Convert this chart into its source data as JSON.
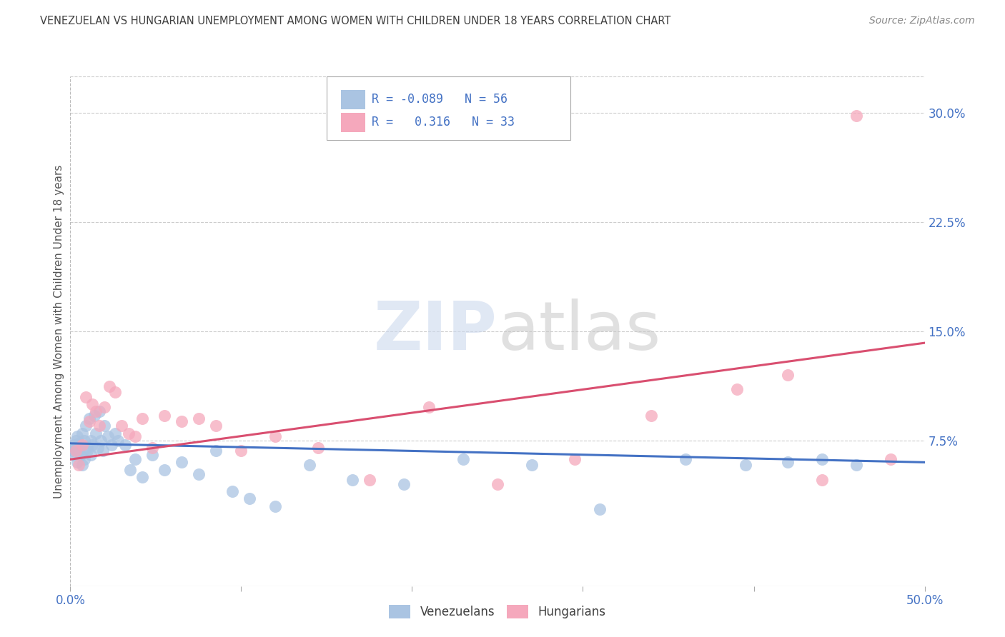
{
  "title": "VENEZUELAN VS HUNGARIAN UNEMPLOYMENT AMONG WOMEN WITH CHILDREN UNDER 18 YEARS CORRELATION CHART",
  "source": "Source: ZipAtlas.com",
  "ylabel": "Unemployment Among Women with Children Under 18 years",
  "xlim": [
    0.0,
    0.5
  ],
  "ylim": [
    -0.025,
    0.325
  ],
  "xticks": [
    0.0,
    0.1,
    0.2,
    0.3,
    0.4,
    0.5
  ],
  "xtick_labels": [
    "0.0%",
    "",
    "",
    "",
    "",
    "50.0%"
  ],
  "yticks_right": [
    0.075,
    0.15,
    0.225,
    0.3
  ],
  "ytick_labels_right": [
    "7.5%",
    "15.0%",
    "22.5%",
    "30.0%"
  ],
  "legend_venezuelan": "Venezuelans",
  "legend_hungarian": "Hungarians",
  "r_venezuelan": "-0.089",
  "n_venezuelan": "56",
  "r_hungarian": "0.316",
  "n_hungarian": "33",
  "color_venezuelan": "#aac4e2",
  "color_hungarian": "#f5a8bc",
  "color_trendline_venezuelan": "#4472c4",
  "color_trendline_hungarian": "#d94f70",
  "color_title": "#404040",
  "color_axis_labels": "#4472c4",
  "trendline_ven_x0": 0.0,
  "trendline_ven_y0": 0.073,
  "trendline_ven_x1": 0.5,
  "trendline_ven_y1": 0.06,
  "trendline_hun_x0": 0.0,
  "trendline_hun_y0": 0.062,
  "trendline_hun_x1": 0.5,
  "trendline_hun_y1": 0.142,
  "venezuelan_x": [
    0.001,
    0.002,
    0.002,
    0.003,
    0.003,
    0.004,
    0.004,
    0.005,
    0.005,
    0.006,
    0.006,
    0.007,
    0.007,
    0.008,
    0.008,
    0.009,
    0.01,
    0.01,
    0.011,
    0.012,
    0.012,
    0.013,
    0.014,
    0.015,
    0.016,
    0.017,
    0.018,
    0.019,
    0.02,
    0.022,
    0.024,
    0.026,
    0.028,
    0.032,
    0.035,
    0.038,
    0.042,
    0.048,
    0.055,
    0.065,
    0.075,
    0.085,
    0.095,
    0.105,
    0.12,
    0.14,
    0.165,
    0.195,
    0.23,
    0.27,
    0.31,
    0.36,
    0.395,
    0.42,
    0.44,
    0.46
  ],
  "venezuelan_y": [
    0.068,
    0.072,
    0.065,
    0.07,
    0.075,
    0.06,
    0.078,
    0.068,
    0.073,
    0.065,
    0.072,
    0.08,
    0.058,
    0.075,
    0.062,
    0.085,
    0.07,
    0.068,
    0.09,
    0.075,
    0.065,
    0.072,
    0.092,
    0.08,
    0.07,
    0.095,
    0.075,
    0.068,
    0.085,
    0.078,
    0.072,
    0.08,
    0.075,
    0.072,
    0.055,
    0.062,
    0.05,
    0.065,
    0.055,
    0.06,
    0.052,
    0.068,
    0.04,
    0.035,
    0.03,
    0.058,
    0.048,
    0.045,
    0.062,
    0.058,
    0.028,
    0.062,
    0.058,
    0.06,
    0.062,
    0.058
  ],
  "hungarian_x": [
    0.003,
    0.005,
    0.007,
    0.009,
    0.011,
    0.013,
    0.015,
    0.017,
    0.02,
    0.023,
    0.026,
    0.03,
    0.034,
    0.038,
    0.042,
    0.048,
    0.055,
    0.065,
    0.075,
    0.085,
    0.1,
    0.12,
    0.145,
    0.175,
    0.21,
    0.25,
    0.295,
    0.34,
    0.39,
    0.42,
    0.44,
    0.46,
    0.48
  ],
  "hungarian_y": [
    0.068,
    0.058,
    0.072,
    0.105,
    0.088,
    0.1,
    0.095,
    0.085,
    0.098,
    0.112,
    0.108,
    0.085,
    0.08,
    0.078,
    0.09,
    0.07,
    0.092,
    0.088,
    0.09,
    0.085,
    0.068,
    0.078,
    0.07,
    0.048,
    0.098,
    0.045,
    0.062,
    0.092,
    0.11,
    0.12,
    0.048,
    0.298,
    0.062
  ]
}
